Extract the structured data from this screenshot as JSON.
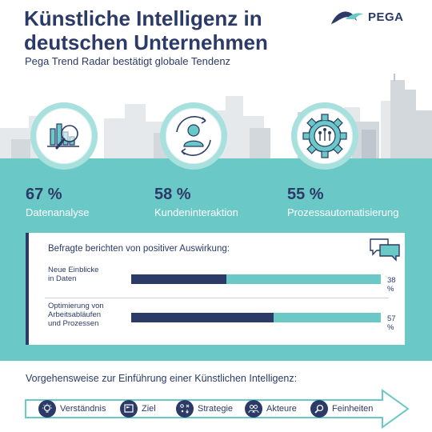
{
  "header": {
    "title_line1": "Künstliche Intelligenz in",
    "title_line2": "deutschen Unternehmen",
    "subtitle": "Pega Trend Radar bestätigt globale Tendenz",
    "logo_text": "PEGA",
    "logo_icon": "pega-logo-icon"
  },
  "stats": [
    {
      "value": "67 %",
      "label": "Datenanalyse",
      "icon": "data-analysis-icon"
    },
    {
      "value": "58 %",
      "label": "Kundeninteraktion",
      "icon": "customer-interaction-icon"
    },
    {
      "value": "55 %",
      "label": "Prozessautomatisierung",
      "icon": "gear-icon"
    }
  ],
  "impact": {
    "heading": "Befragte berichten von positiver Auswirkung:",
    "icon": "chat-icon",
    "rows": [
      {
        "label_lines": [
          "Neue Einblicke",
          "in Daten"
        ],
        "percent_text": "38 %",
        "value": 38
      },
      {
        "label_lines": [
          "Optimierung von",
          "Arbeitsabläufen",
          "und Prozessen"
        ],
        "percent_text": "57 %",
        "value": 57
      }
    ]
  },
  "steps": {
    "heading": "Vorgehensweise zur Einführung einer Künstlichen Intelligenz:",
    "items": [
      {
        "label": "Verständnis",
        "icon": "lightbulb-icon"
      },
      {
        "label": "Ziel",
        "icon": "flag-icon"
      },
      {
        "label": "Strategie",
        "icon": "strategy-icon"
      },
      {
        "label": "Akteure",
        "icon": "people-icon"
      },
      {
        "label": "Feinheiten",
        "icon": "magnifier-icon"
      }
    ]
  },
  "colors": {
    "navy": "#2b3a67",
    "teal": "#6ac8c6",
    "light_teal": "#a8e0dd",
    "skyline_gray": "#e3e6e9"
  }
}
